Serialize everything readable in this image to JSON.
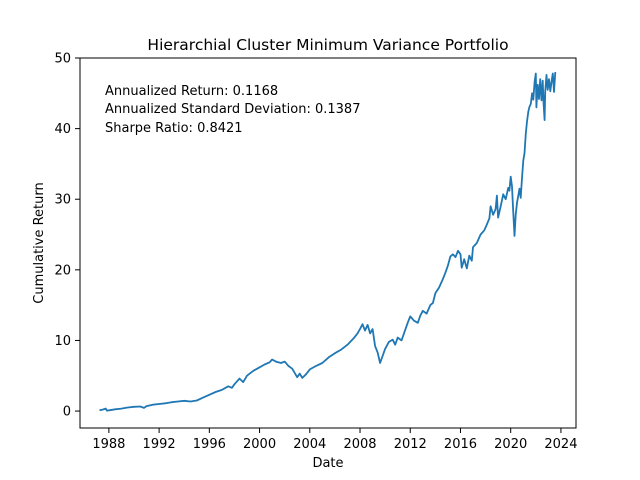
{
  "chart_data": {
    "type": "line",
    "title": "Hierarchial Cluster Minimum Variance Portfolio",
    "xlabel": "Date",
    "ylabel": "Cumulative Return",
    "xlim": [
      1985.7,
      2025.2
    ],
    "ylim": [
      -2.4,
      50.0
    ],
    "x_ticks": [
      1988,
      1992,
      1996,
      2000,
      2004,
      2008,
      2012,
      2016,
      2020,
      2024
    ],
    "x_tick_labels": [
      "1988",
      "1992",
      "1996",
      "2000",
      "2004",
      "2008",
      "2012",
      "2016",
      "2020",
      "2024"
    ],
    "y_ticks": [
      0,
      10,
      20,
      30,
      40,
      50
    ],
    "y_tick_labels": [
      "0",
      "10",
      "20",
      "30",
      "40",
      "50"
    ],
    "grid": false,
    "annotations": [
      "Annualized Return: 0.1168",
      "Annualized Standard Deviation: 0.1387",
      "Sharpe Ratio: 0.8421"
    ],
    "series": [
      {
        "color": "#1f77b4",
        "points": [
          [
            1987.25,
            0.1
          ],
          [
            1987.5,
            0.2
          ],
          [
            1987.75,
            0.35
          ],
          [
            1987.85,
            0.05
          ],
          [
            1988.0,
            0.1
          ],
          [
            1988.5,
            0.25
          ],
          [
            1989.0,
            0.35
          ],
          [
            1989.5,
            0.5
          ],
          [
            1990.0,
            0.6
          ],
          [
            1990.5,
            0.65
          ],
          [
            1990.8,
            0.45
          ],
          [
            1991.0,
            0.7
          ],
          [
            1991.5,
            0.9
          ],
          [
            1992.0,
            1.0
          ],
          [
            1992.5,
            1.1
          ],
          [
            1993.0,
            1.25
          ],
          [
            1993.5,
            1.35
          ],
          [
            1994.0,
            1.45
          ],
          [
            1994.5,
            1.35
          ],
          [
            1995.0,
            1.5
          ],
          [
            1995.5,
            1.9
          ],
          [
            1996.0,
            2.3
          ],
          [
            1996.5,
            2.7
          ],
          [
            1997.0,
            3.0
          ],
          [
            1997.5,
            3.5
          ],
          [
            1997.8,
            3.3
          ],
          [
            1998.0,
            3.8
          ],
          [
            1998.4,
            4.6
          ],
          [
            1998.7,
            4.1
          ],
          [
            1999.0,
            5.0
          ],
          [
            1999.5,
            5.7
          ],
          [
            2000.0,
            6.2
          ],
          [
            2000.4,
            6.6
          ],
          [
            2000.8,
            6.9
          ],
          [
            2001.0,
            7.3
          ],
          [
            2001.3,
            7.0
          ],
          [
            2001.7,
            6.8
          ],
          [
            2002.0,
            7.0
          ],
          [
            2002.3,
            6.4
          ],
          [
            2002.6,
            6.0
          ],
          [
            2002.8,
            5.4
          ],
          [
            2003.0,
            4.8
          ],
          [
            2003.2,
            5.3
          ],
          [
            2003.4,
            4.7
          ],
          [
            2003.7,
            5.2
          ],
          [
            2004.0,
            5.9
          ],
          [
            2004.5,
            6.4
          ],
          [
            2005.0,
            6.8
          ],
          [
            2005.5,
            7.6
          ],
          [
            2006.0,
            8.2
          ],
          [
            2006.5,
            8.7
          ],
          [
            2007.0,
            9.4
          ],
          [
            2007.5,
            10.3
          ],
          [
            2007.8,
            11.0
          ],
          [
            2008.0,
            11.6
          ],
          [
            2008.2,
            12.3
          ],
          [
            2008.4,
            11.4
          ],
          [
            2008.6,
            12.2
          ],
          [
            2008.8,
            11.0
          ],
          [
            2009.0,
            11.6
          ],
          [
            2009.2,
            9.2
          ],
          [
            2009.4,
            8.3
          ],
          [
            2009.6,
            6.8
          ],
          [
            2009.8,
            7.8
          ],
          [
            2010.0,
            8.8
          ],
          [
            2010.3,
            9.8
          ],
          [
            2010.6,
            10.1
          ],
          [
            2010.8,
            9.4
          ],
          [
            2011.0,
            10.4
          ],
          [
            2011.3,
            10.0
          ],
          [
            2011.6,
            11.5
          ],
          [
            2011.8,
            12.5
          ],
          [
            2012.0,
            13.4
          ],
          [
            2012.3,
            12.8
          ],
          [
            2012.6,
            12.5
          ],
          [
            2012.8,
            13.5
          ],
          [
            2013.0,
            14.2
          ],
          [
            2013.3,
            13.8
          ],
          [
            2013.6,
            15.0
          ],
          [
            2013.8,
            15.3
          ],
          [
            2014.0,
            16.7
          ],
          [
            2014.3,
            17.5
          ],
          [
            2014.6,
            18.7
          ],
          [
            2014.8,
            19.6
          ],
          [
            2015.0,
            20.6
          ],
          [
            2015.2,
            21.9
          ],
          [
            2015.4,
            22.2
          ],
          [
            2015.6,
            21.8
          ],
          [
            2015.8,
            22.7
          ],
          [
            2016.0,
            22.2
          ],
          [
            2016.1,
            20.3
          ],
          [
            2016.3,
            21.5
          ],
          [
            2016.5,
            20.2
          ],
          [
            2016.7,
            22.0
          ],
          [
            2016.9,
            21.3
          ],
          [
            2017.0,
            23.2
          ],
          [
            2017.3,
            23.8
          ],
          [
            2017.6,
            25.0
          ],
          [
            2017.9,
            25.6
          ],
          [
            2018.1,
            26.4
          ],
          [
            2018.3,
            27.3
          ],
          [
            2018.4,
            29.0
          ],
          [
            2018.6,
            27.8
          ],
          [
            2018.8,
            28.6
          ],
          [
            2018.9,
            30.5
          ],
          [
            2019.0,
            27.4
          ],
          [
            2019.2,
            29.0
          ],
          [
            2019.4,
            30.7
          ],
          [
            2019.6,
            30.0
          ],
          [
            2019.8,
            31.6
          ],
          [
            2019.9,
            31.2
          ],
          [
            2020.0,
            33.2
          ],
          [
            2020.1,
            31.8
          ],
          [
            2020.2,
            28.3
          ],
          [
            2020.3,
            24.8
          ],
          [
            2020.4,
            27.8
          ],
          [
            2020.5,
            29.5
          ],
          [
            2020.7,
            31.5
          ],
          [
            2020.8,
            30.2
          ],
          [
            2020.9,
            33.0
          ],
          [
            2021.0,
            35.5
          ],
          [
            2021.1,
            36.5
          ],
          [
            2021.2,
            39.3
          ],
          [
            2021.3,
            41.0
          ],
          [
            2021.4,
            42.4
          ],
          [
            2021.5,
            43.1
          ],
          [
            2021.6,
            43.5
          ],
          [
            2021.7,
            45.0
          ],
          [
            2021.8,
            44.1
          ],
          [
            2021.9,
            46.6
          ],
          [
            2022.0,
            47.8
          ],
          [
            2022.05,
            43.0
          ],
          [
            2022.15,
            46.2
          ],
          [
            2022.25,
            44.2
          ],
          [
            2022.35,
            47.0
          ],
          [
            2022.45,
            44.0
          ],
          [
            2022.55,
            46.8
          ],
          [
            2022.62,
            43.5
          ],
          [
            2022.7,
            41.2
          ],
          [
            2022.75,
            45.2
          ],
          [
            2022.85,
            47.6
          ],
          [
            2022.95,
            45.5
          ],
          [
            2023.05,
            47.0
          ],
          [
            2023.15,
            45.3
          ],
          [
            2023.25,
            46.6
          ],
          [
            2023.35,
            47.8
          ],
          [
            2023.45,
            45.2
          ],
          [
            2023.55,
            48.0
          ]
        ]
      }
    ]
  }
}
